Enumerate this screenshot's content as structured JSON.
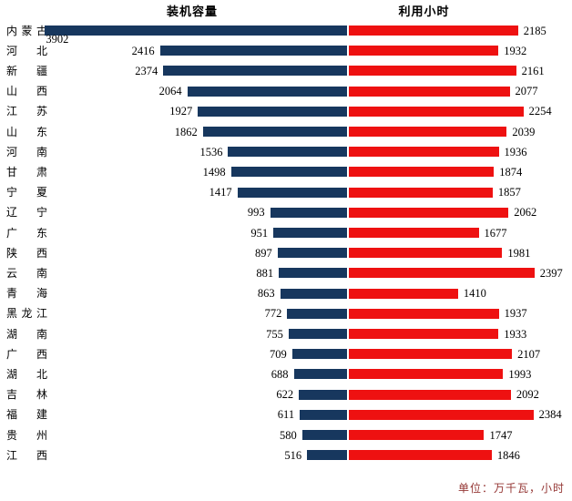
{
  "titles": {
    "left": "装机容量",
    "right": "利用小时"
  },
  "footer_note": "单位：万千瓦，小时",
  "colors": {
    "capacity_bar": "#17375E",
    "hours_bar": "#EE1111",
    "footer_text": "#953735",
    "background": "#FFFFFF",
    "text": "#000000"
  },
  "chart_data": {
    "type": "bar",
    "subtype": "tornado-back-to-back-horizontal",
    "title": "",
    "left_series_title": "装机容量",
    "right_series_title": "利用小时",
    "units_note": "单位：万千瓦，小时",
    "categories": [
      "内蒙古",
      "河北",
      "新疆",
      "山西",
      "江苏",
      "山东",
      "河南",
      "甘肃",
      "宁夏",
      "辽宁",
      "广东",
      "陕西",
      "云南",
      "青海",
      "黑龙江",
      "湖南",
      "广西",
      "湖北",
      "吉林",
      "福建",
      "贵州",
      "江西"
    ],
    "series": [
      {
        "name": "装机容量",
        "side": "left",
        "color": "#17375E",
        "values": [
          3902,
          2416,
          2374,
          2064,
          1927,
          1862,
          1536,
          1498,
          1417,
          993,
          951,
          897,
          881,
          863,
          772,
          755,
          709,
          688,
          622,
          611,
          580,
          516
        ]
      },
      {
        "name": "利用小时",
        "side": "right",
        "color": "#EE1111",
        "values": [
          2185,
          1932,
          2161,
          2077,
          2254,
          2039,
          1936,
          1874,
          1857,
          2062,
          1677,
          1981,
          2397,
          1410,
          1937,
          1933,
          2107,
          1993,
          2092,
          2384,
          1747,
          1846
        ]
      }
    ],
    "value_labels": "outside-end",
    "first_row_left_label_position": "below-bar-start",
    "axes_visible": false,
    "gridlines": false,
    "legend_position": "column-titles-top",
    "left_axis_range": [
      0,
      4000
    ],
    "right_axis_range": [
      0,
      2500
    ]
  }
}
